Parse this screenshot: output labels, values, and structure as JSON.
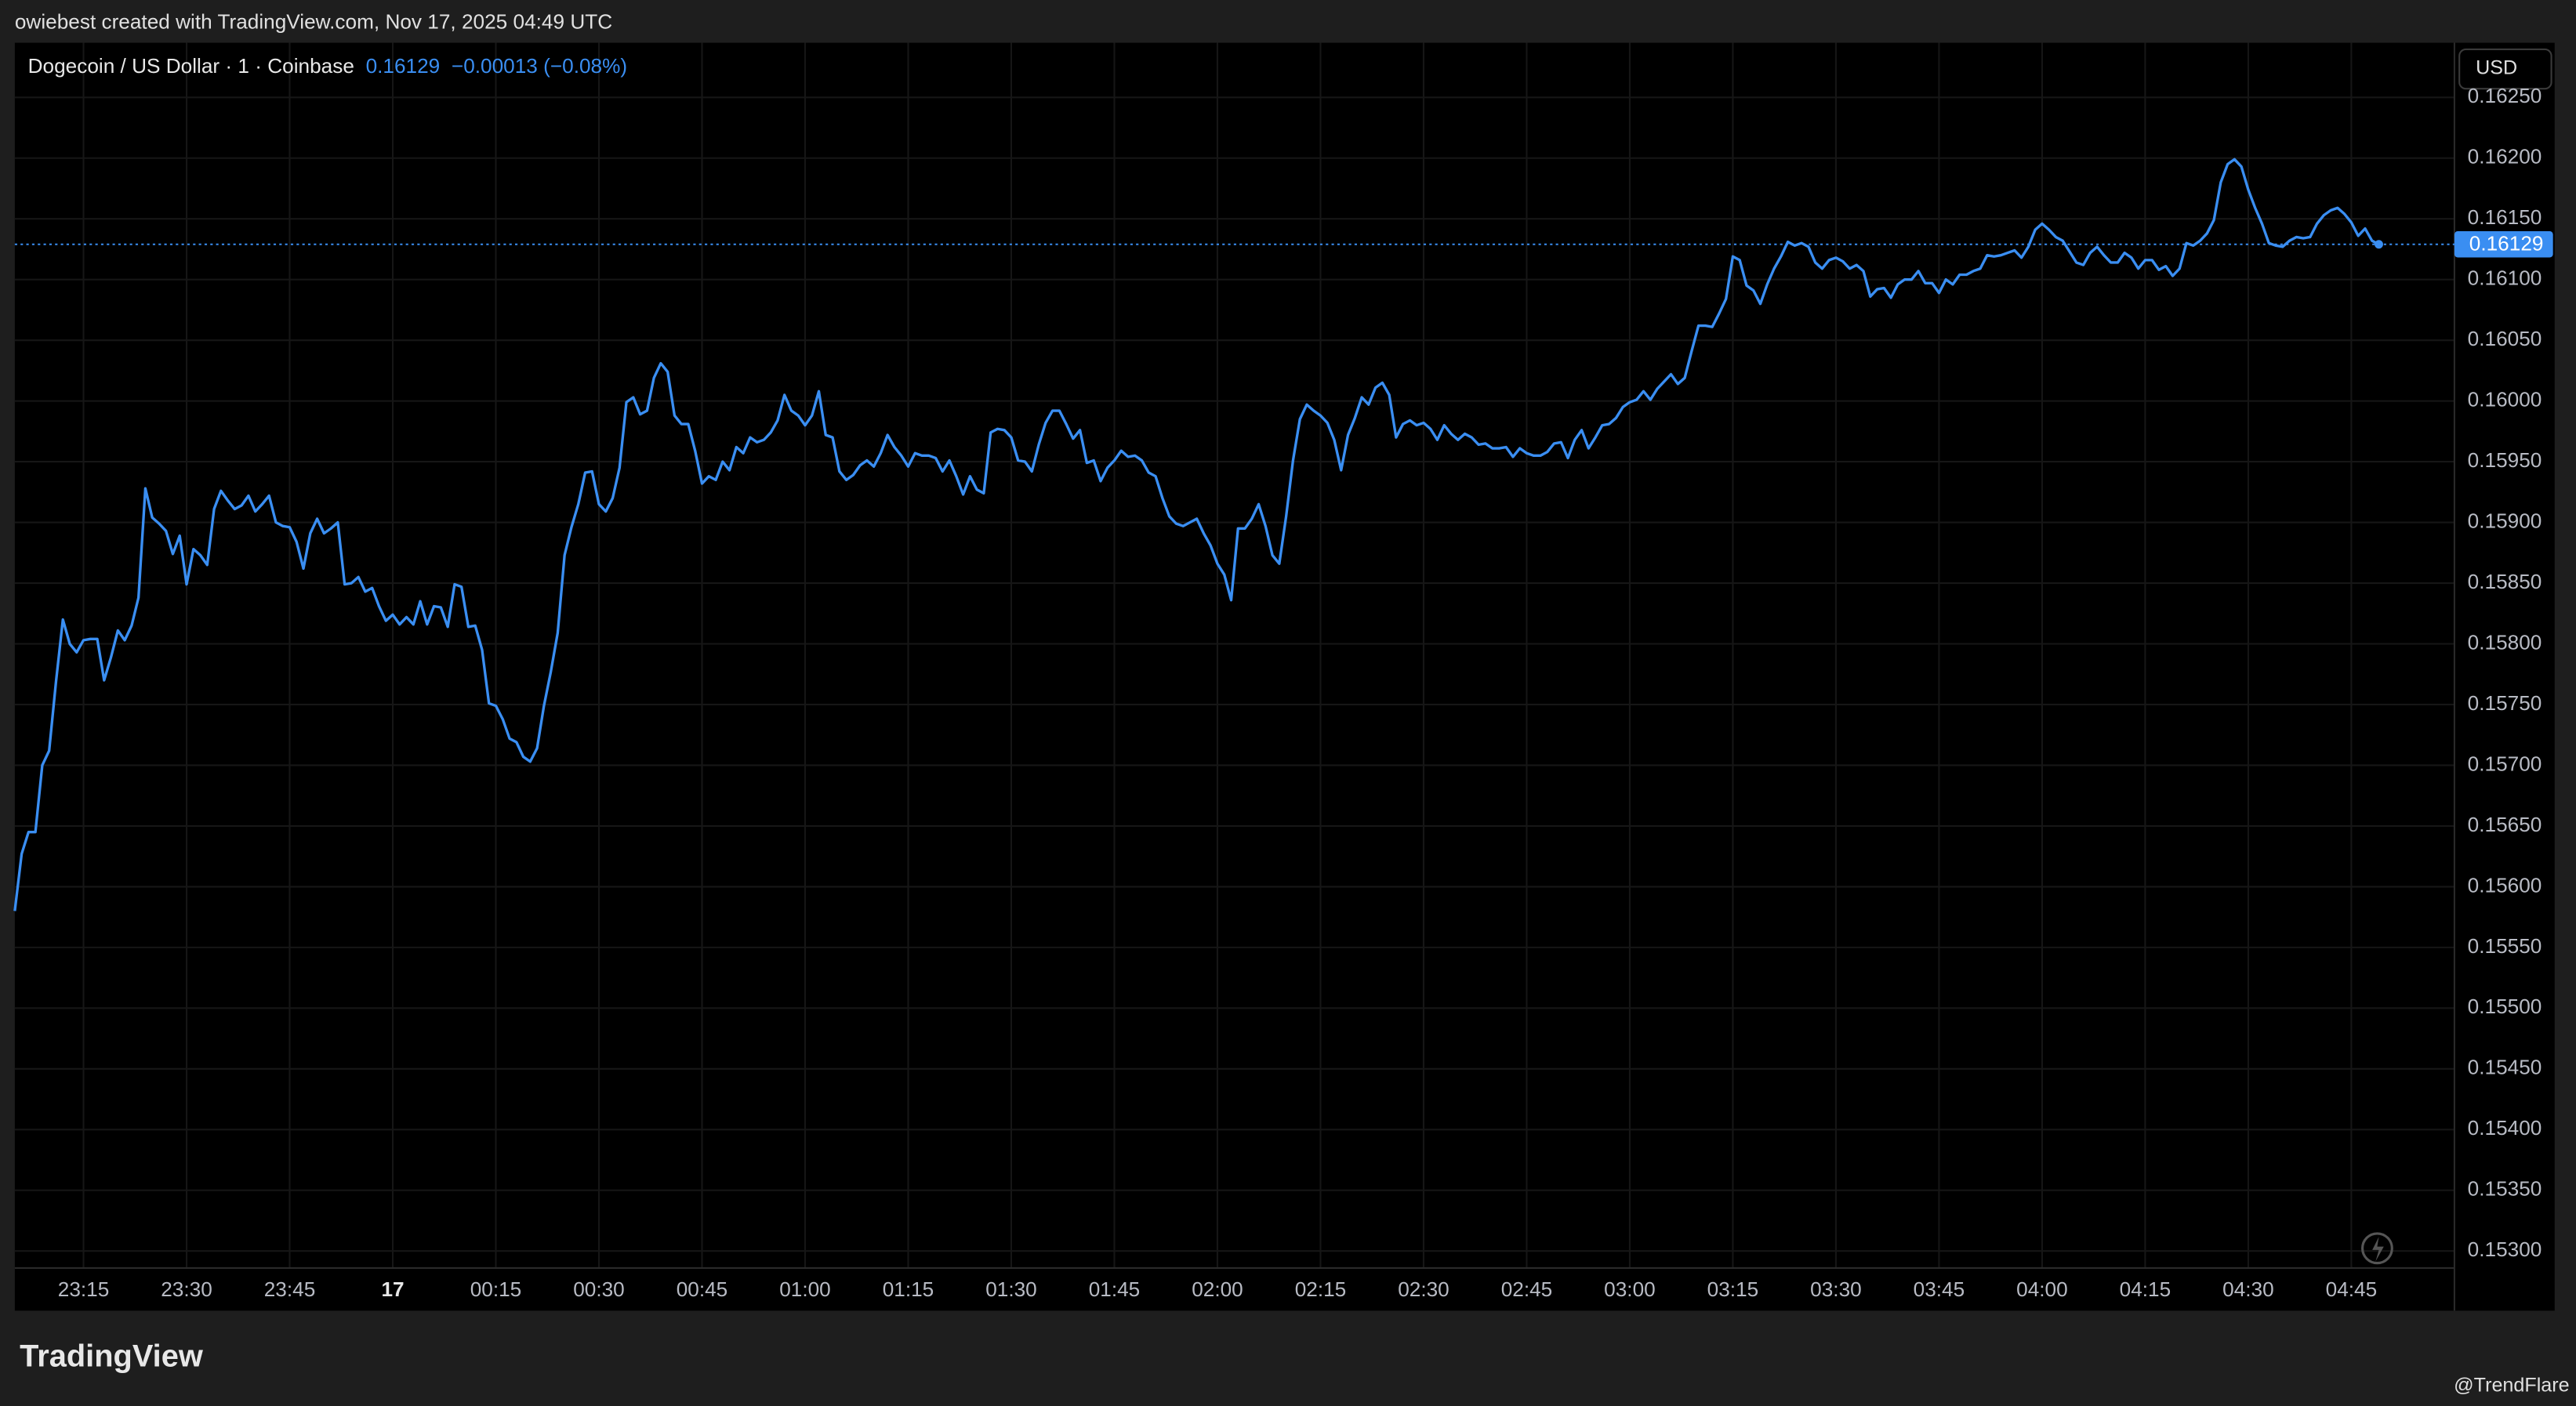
{
  "header": {
    "attribution": "owiebest created with TradingView.com, Nov 17, 2025 04:49 UTC"
  },
  "chart_data": {
    "type": "line",
    "title": "Dogecoin / US Dollar · 1 · Coinbase",
    "subtitle": "−0.00013 (−0.08%)",
    "currency": "USD",
    "x": [
      "23:05",
      "23:06",
      "23:07",
      "23:08",
      "23:09",
      "23:10",
      "23:11",
      "23:12",
      "23:13",
      "23:14",
      "23:15",
      "23:16",
      "23:17",
      "23:18",
      "23:19",
      "23:20",
      "23:21",
      "23:22",
      "23:23",
      "23:24",
      "23:25",
      "23:26",
      "23:27",
      "23:28",
      "23:29",
      "23:30",
      "23:31",
      "23:32",
      "23:33",
      "23:34",
      "23:35",
      "23:36",
      "23:37",
      "23:38",
      "23:39",
      "23:40",
      "23:41",
      "23:42",
      "23:43",
      "23:44",
      "23:45",
      "23:46",
      "23:47",
      "23:48",
      "23:49",
      "23:50",
      "23:51",
      "23:52",
      "23:53",
      "23:54",
      "23:55",
      "23:56",
      "23:57",
      "23:58",
      "23:59",
      "00:00",
      "00:01",
      "00:02",
      "00:03",
      "00:04",
      "00:05",
      "00:06",
      "00:07",
      "00:08",
      "00:09",
      "00:10",
      "00:11",
      "00:12",
      "00:13",
      "00:14",
      "00:15",
      "00:16",
      "00:17",
      "00:18",
      "00:19",
      "00:20",
      "00:21",
      "00:22",
      "00:23",
      "00:24",
      "00:25",
      "00:26",
      "00:27",
      "00:28",
      "00:29",
      "00:30",
      "00:31",
      "00:32",
      "00:33",
      "00:34",
      "00:35",
      "00:36",
      "00:37",
      "00:38",
      "00:39",
      "00:40",
      "00:41",
      "00:42",
      "00:43",
      "00:44",
      "00:45",
      "00:46",
      "00:47",
      "00:48",
      "00:49",
      "00:50",
      "00:51",
      "00:52",
      "00:53",
      "00:54",
      "00:55",
      "00:56",
      "00:57",
      "00:58",
      "00:59",
      "01:00",
      "01:01",
      "01:02",
      "01:03",
      "01:04",
      "01:05",
      "01:06",
      "01:07",
      "01:08",
      "01:09",
      "01:10",
      "01:11",
      "01:12",
      "01:13",
      "01:14",
      "01:15",
      "01:16",
      "01:17",
      "01:18",
      "01:19",
      "01:20",
      "01:21",
      "01:22",
      "01:23",
      "01:24",
      "01:25",
      "01:26",
      "01:27",
      "01:28",
      "01:29",
      "01:30",
      "01:31",
      "01:32",
      "01:33",
      "01:34",
      "01:35",
      "01:36",
      "01:37",
      "01:38",
      "01:39",
      "01:40",
      "01:41",
      "01:42",
      "01:43",
      "01:44",
      "01:45",
      "01:46",
      "01:47",
      "01:48",
      "01:49",
      "01:50",
      "01:51",
      "01:52",
      "01:53",
      "01:54",
      "01:55",
      "01:56",
      "01:57",
      "01:58",
      "01:59",
      "02:00",
      "02:01",
      "02:02",
      "02:03",
      "02:04",
      "02:05",
      "02:06",
      "02:07",
      "02:08",
      "02:09",
      "02:10",
      "02:11",
      "02:12",
      "02:13",
      "02:14",
      "02:15",
      "02:16",
      "02:17",
      "02:18",
      "02:19",
      "02:20",
      "02:21",
      "02:22",
      "02:23",
      "02:24",
      "02:25",
      "02:26",
      "02:27",
      "02:28",
      "02:29",
      "02:30",
      "02:31",
      "02:32",
      "02:33",
      "02:34",
      "02:35",
      "02:36",
      "02:37",
      "02:38",
      "02:39",
      "02:40",
      "02:41",
      "02:42",
      "02:43",
      "02:44",
      "02:45",
      "02:46",
      "02:47",
      "02:48",
      "02:49",
      "02:50",
      "02:51",
      "02:52",
      "02:53",
      "02:54",
      "02:55",
      "02:56",
      "02:57",
      "02:58",
      "02:59",
      "03:00",
      "03:01",
      "03:02",
      "03:03",
      "03:04",
      "03:05",
      "03:06",
      "03:07",
      "03:08",
      "03:09",
      "03:10",
      "03:11",
      "03:12",
      "03:13",
      "03:14",
      "03:15",
      "03:16",
      "03:17",
      "03:18",
      "03:19",
      "03:20",
      "03:21",
      "03:22",
      "03:23",
      "03:24",
      "03:25",
      "03:26",
      "03:27",
      "03:28",
      "03:29",
      "03:30",
      "03:31",
      "03:32",
      "03:33",
      "03:34",
      "03:35",
      "03:36",
      "03:37",
      "03:38",
      "03:39",
      "03:40",
      "03:41",
      "03:42",
      "03:43",
      "03:44",
      "03:45",
      "03:46",
      "03:47",
      "03:48",
      "03:49",
      "03:50",
      "03:51",
      "03:52",
      "03:53",
      "03:54",
      "03:55",
      "03:56",
      "03:57",
      "03:58",
      "03:59",
      "04:00",
      "04:01",
      "04:02",
      "04:03",
      "04:04",
      "04:05",
      "04:06",
      "04:07",
      "04:08",
      "04:09",
      "04:10",
      "04:11",
      "04:12",
      "04:13",
      "04:14",
      "04:15",
      "04:16",
      "04:17",
      "04:18",
      "04:19",
      "04:20",
      "04:21",
      "04:22",
      "04:23",
      "04:24",
      "04:25",
      "04:26",
      "04:27",
      "04:28",
      "04:29",
      "04:30",
      "04:31",
      "04:32",
      "04:33",
      "04:34",
      "04:35",
      "04:36",
      "04:37",
      "04:38",
      "04:39",
      "04:40",
      "04:41",
      "04:42",
      "04:43",
      "04:44",
      "04:45",
      "04:46",
      "04:47",
      "04:48",
      "04:49"
    ],
    "series": [
      {
        "color": "#3a8ef2",
        "values": [
          0.1558,
          0.15627,
          0.15645,
          0.15645,
          0.157,
          0.15712,
          0.15769,
          0.1582,
          0.158,
          0.15793,
          0.15803,
          0.15804,
          0.15804,
          0.1577,
          0.15789,
          0.15811,
          0.15803,
          0.15815,
          0.15838,
          0.15928,
          0.15904,
          0.15899,
          0.15893,
          0.15874,
          0.15889,
          0.15849,
          0.15878,
          0.15873,
          0.15865,
          0.15911,
          0.15926,
          0.15918,
          0.15911,
          0.15914,
          0.15922,
          0.15909,
          0.15915,
          0.15922,
          0.159,
          0.15897,
          0.15896,
          0.15884,
          0.15862,
          0.15891,
          0.15903,
          0.15891,
          0.15895,
          0.159,
          0.15849,
          0.1585,
          0.15855,
          0.15843,
          0.15846,
          0.15831,
          0.15819,
          0.15824,
          0.15816,
          0.15822,
          0.15816,
          0.15835,
          0.15816,
          0.15831,
          0.1583,
          0.15814,
          0.15849,
          0.15847,
          0.15814,
          0.15815,
          0.15795,
          0.15751,
          0.15749,
          0.15738,
          0.15722,
          0.15719,
          0.15707,
          0.15703,
          0.15714,
          0.15749,
          0.15777,
          0.15809,
          0.15873,
          0.15896,
          0.15915,
          0.15941,
          0.15942,
          0.15915,
          0.15909,
          0.1592,
          0.15945,
          0.15999,
          0.16003,
          0.15989,
          0.15992,
          0.16019,
          0.16031,
          0.16024,
          0.15988,
          0.15981,
          0.15981,
          0.15959,
          0.15932,
          0.15938,
          0.15935,
          0.1595,
          0.15943,
          0.15962,
          0.15957,
          0.1597,
          0.15966,
          0.15968,
          0.15974,
          0.15984,
          0.16005,
          0.15992,
          0.15988,
          0.1598,
          0.15988,
          0.16008,
          0.15972,
          0.1597,
          0.15942,
          0.15935,
          0.15939,
          0.15947,
          0.15951,
          0.15946,
          0.15957,
          0.15972,
          0.15962,
          0.15955,
          0.15946,
          0.15957,
          0.15955,
          0.15955,
          0.15953,
          0.15942,
          0.15951,
          0.15938,
          0.15923,
          0.15938,
          0.15927,
          0.15924,
          0.15974,
          0.15977,
          0.15976,
          0.1597,
          0.15951,
          0.1595,
          0.15942,
          0.15964,
          0.15982,
          0.15992,
          0.15992,
          0.15981,
          0.15969,
          0.15976,
          0.15949,
          0.15951,
          0.15934,
          0.15945,
          0.15951,
          0.15959,
          0.15954,
          0.15955,
          0.15951,
          0.15941,
          0.15938,
          0.1592,
          0.15905,
          0.15899,
          0.15897,
          0.159,
          0.15903,
          0.15891,
          0.15881,
          0.15866,
          0.15857,
          0.15836,
          0.15895,
          0.15895,
          0.15903,
          0.15915,
          0.15897,
          0.15873,
          0.15866,
          0.15905,
          0.15951,
          0.15985,
          0.15997,
          0.15992,
          0.15988,
          0.15982,
          0.15968,
          0.15943,
          0.15972,
          0.15986,
          0.16003,
          0.15997,
          0.16011,
          0.16015,
          0.16005,
          0.1597,
          0.15981,
          0.15984,
          0.1598,
          0.15982,
          0.15977,
          0.15968,
          0.1598,
          0.15973,
          0.15968,
          0.15973,
          0.1597,
          0.15964,
          0.15965,
          0.15961,
          0.15961,
          0.15962,
          0.15954,
          0.15961,
          0.15957,
          0.15955,
          0.15955,
          0.15958,
          0.15965,
          0.15966,
          0.15953,
          0.15968,
          0.15976,
          0.15961,
          0.1597,
          0.1598,
          0.15981,
          0.15986,
          0.15995,
          0.15999,
          0.16001,
          0.16008,
          0.16001,
          0.1601,
          0.16016,
          0.16022,
          0.16014,
          0.16019,
          0.16041,
          0.16062,
          0.16062,
          0.16061,
          0.16072,
          0.16084,
          0.16119,
          0.16116,
          0.16095,
          0.16091,
          0.1608,
          0.16096,
          0.16109,
          0.16119,
          0.16131,
          0.16128,
          0.1613,
          0.16127,
          0.16114,
          0.16109,
          0.16116,
          0.16118,
          0.16115,
          0.16109,
          0.16112,
          0.16107,
          0.16086,
          0.16092,
          0.16093,
          0.16085,
          0.16096,
          0.161,
          0.161,
          0.16107,
          0.16097,
          0.16097,
          0.16089,
          0.161,
          0.16096,
          0.16104,
          0.16104,
          0.16107,
          0.16109,
          0.1612,
          0.16119,
          0.1612,
          0.16122,
          0.16124,
          0.16118,
          0.16127,
          0.16141,
          0.16146,
          0.16141,
          0.16135,
          0.16132,
          0.16123,
          0.16114,
          0.16112,
          0.16122,
          0.16127,
          0.1612,
          0.16114,
          0.16114,
          0.16122,
          0.16118,
          0.16109,
          0.16116,
          0.16116,
          0.16108,
          0.16111,
          0.16103,
          0.16109,
          0.1613,
          0.16128,
          0.16132,
          0.16138,
          0.16149,
          0.1618,
          0.16195,
          0.16199,
          0.16193,
          0.16174,
          0.16159,
          0.16146,
          0.1613,
          0.16128,
          0.16127,
          0.16132,
          0.16135,
          0.16134,
          0.16135,
          0.16146,
          0.16153,
          0.16157,
          0.16159,
          0.16154,
          0.16147,
          0.16136,
          0.16142,
          0.16132,
          0.16129
        ]
      }
    ],
    "xlim": [
      "23:05",
      "05:00"
    ],
    "xticks": [
      "23:15",
      "23:30",
      "23:45",
      {
        "value": "00:00",
        "label": "17"
      },
      "00:15",
      "00:30",
      "00:45",
      "01:00",
      "01:15",
      "01:30",
      "01:45",
      "02:00",
      "02:15",
      "02:30",
      "02:45",
      "03:00",
      "03:15",
      "03:30",
      "03:45",
      "04:00",
      "04:15",
      "04:30",
      "04:45"
    ],
    "ylim": [
      0.15286,
      0.16295
    ],
    "yticks": [
      {
        "value": 0.153,
        "label": "0.15300"
      },
      {
        "value": 0.1535,
        "label": "0.15350"
      },
      {
        "value": 0.154,
        "label": "0.15400"
      },
      {
        "value": 0.1545,
        "label": "0.15450"
      },
      {
        "value": 0.155,
        "label": "0.15500"
      },
      {
        "value": 0.1555,
        "label": "0.15550"
      },
      {
        "value": 0.156,
        "label": "0.15600"
      },
      {
        "value": 0.1565,
        "label": "0.15650"
      },
      {
        "value": 0.157,
        "label": "0.15700"
      },
      {
        "value": 0.1575,
        "label": "0.15750"
      },
      {
        "value": 0.158,
        "label": "0.15800"
      },
      {
        "value": 0.1585,
        "label": "0.15850"
      },
      {
        "value": 0.159,
        "label": "0.15900"
      },
      {
        "value": 0.1595,
        "label": "0.15950"
      },
      {
        "value": 0.16,
        "label": "0.16000"
      },
      {
        "value": 0.1605,
        "label": "0.16050"
      },
      {
        "value": 0.161,
        "label": "0.16100"
      },
      {
        "value": 0.1615,
        "label": "0.16150"
      },
      {
        "value": 0.162,
        "label": "0.16200"
      },
      {
        "value": 0.1625,
        "label": "0.16250"
      }
    ],
    "grid": true
  },
  "footer": {
    "logo": "TradingView",
    "watermark": "@TrendFlare"
  }
}
